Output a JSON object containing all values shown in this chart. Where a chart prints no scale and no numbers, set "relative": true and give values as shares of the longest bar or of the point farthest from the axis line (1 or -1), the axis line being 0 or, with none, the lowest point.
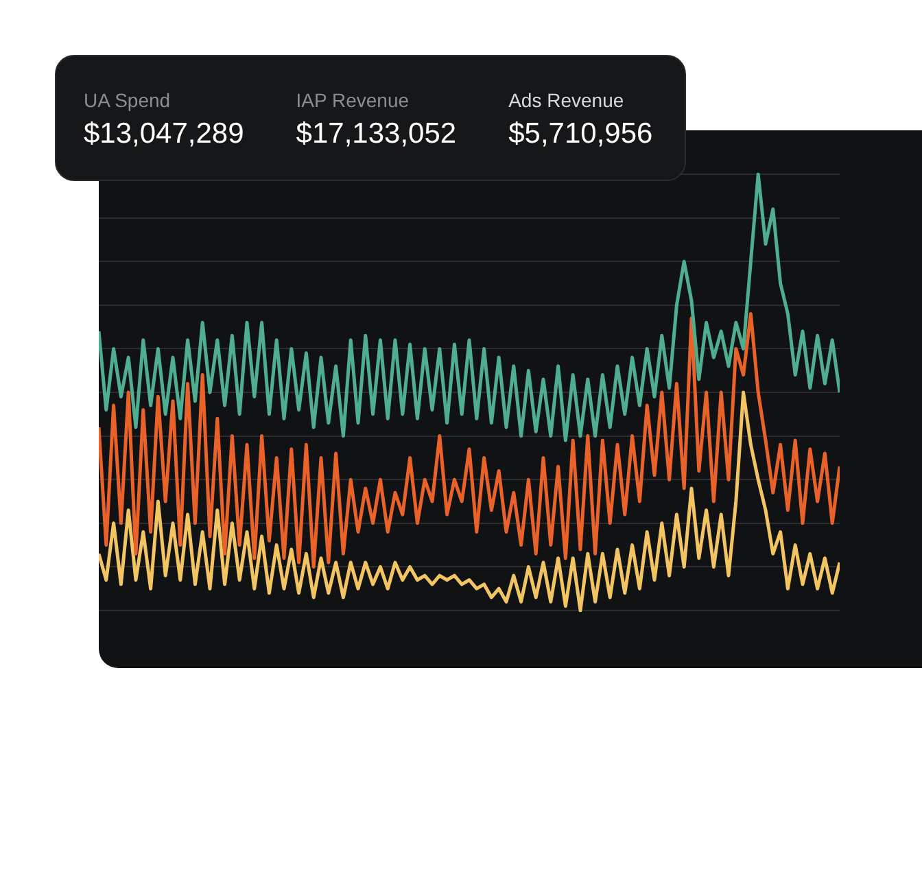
{
  "chart_data": [
    {
      "type": "line",
      "relative": true,
      "grid": "y",
      "marker": "none",
      "line_style": "solid",
      "categories": [
        null,
        null,
        null,
        null,
        null,
        null,
        null,
        null,
        null,
        null,
        null,
        null,
        null,
        null,
        null,
        null,
        null,
        null,
        null,
        null,
        null,
        null,
        null,
        null,
        null,
        null,
        null,
        null,
        null,
        null,
        null,
        null,
        null,
        null,
        null,
        null,
        null,
        null,
        null,
        null,
        null,
        null,
        null,
        null,
        null,
        null,
        null,
        null,
        null,
        null,
        null,
        null,
        null,
        null,
        null,
        null,
        null,
        null,
        null,
        null,
        null,
        null,
        null,
        null,
        null,
        null,
        null,
        null,
        null,
        null,
        null,
        null,
        null,
        null,
        null,
        null,
        null,
        null,
        null,
        null,
        null,
        null,
        null,
        null,
        null,
        null,
        null,
        null,
        null,
        null,
        null,
        null,
        null,
        null,
        null,
        null,
        null,
        null,
        null,
        null,
        null
      ],
      "series": [
        {
          "color": "#4fae8f",
          "values": [
            0.64,
            0.46,
            0.6,
            0.49,
            0.58,
            0.42,
            0.62,
            0.47,
            0.6,
            0.45,
            0.58,
            0.44,
            0.62,
            0.48,
            0.66,
            0.5,
            0.62,
            0.47,
            0.63,
            0.45,
            0.66,
            0.49,
            0.66,
            0.45,
            0.62,
            0.44,
            0.6,
            0.46,
            0.59,
            0.42,
            0.58,
            0.43,
            0.56,
            0.4,
            0.62,
            0.43,
            0.63,
            0.45,
            0.62,
            0.44,
            0.62,
            0.45,
            0.61,
            0.44,
            0.6,
            0.46,
            0.6,
            0.43,
            0.61,
            0.45,
            0.62,
            0.44,
            0.6,
            0.43,
            0.58,
            0.42,
            0.56,
            0.4,
            0.55,
            0.41,
            0.53,
            0.4,
            0.56,
            0.39,
            0.54,
            0.4,
            0.53,
            0.4,
            0.54,
            0.42,
            0.56,
            0.45,
            0.58,
            0.47,
            0.6,
            0.49,
            0.63,
            0.51,
            0.7,
            0.8,
            0.71,
            0.53,
            0.66,
            0.58,
            0.64,
            0.56,
            0.66,
            0.6,
            0.8,
            1.0,
            0.84,
            0.92,
            0.75,
            0.68,
            0.54,
            0.64,
            0.51,
            0.63,
            0.52,
            0.62,
            0.5
          ]
        },
        {
          "color": "#e8622a",
          "values": [
            0.42,
            0.15,
            0.47,
            0.2,
            0.5,
            0.13,
            0.46,
            0.18,
            0.49,
            0.25,
            0.48,
            0.15,
            0.52,
            0.2,
            0.54,
            0.17,
            0.44,
            0.13,
            0.4,
            0.15,
            0.38,
            0.12,
            0.4,
            0.16,
            0.35,
            0.12,
            0.37,
            0.11,
            0.38,
            0.1,
            0.35,
            0.11,
            0.36,
            0.13,
            0.3,
            0.18,
            0.28,
            0.2,
            0.3,
            0.18,
            0.27,
            0.22,
            0.35,
            0.2,
            0.3,
            0.25,
            0.4,
            0.22,
            0.3,
            0.25,
            0.37,
            0.18,
            0.35,
            0.23,
            0.32,
            0.18,
            0.27,
            0.15,
            0.3,
            0.13,
            0.35,
            0.15,
            0.33,
            0.12,
            0.39,
            0.14,
            0.4,
            0.13,
            0.39,
            0.2,
            0.38,
            0.22,
            0.4,
            0.25,
            0.47,
            0.31,
            0.5,
            0.3,
            0.52,
            0.28,
            0.67,
            0.32,
            0.5,
            0.25,
            0.5,
            0.3,
            0.6,
            0.54,
            0.68,
            0.5,
            0.39,
            0.27,
            0.38,
            0.23,
            0.39,
            0.2,
            0.37,
            0.25,
            0.36,
            0.2,
            0.33
          ]
        },
        {
          "color": "#f2c462",
          "values": [
            0.13,
            0.07,
            0.2,
            0.06,
            0.23,
            0.07,
            0.18,
            0.05,
            0.25,
            0.08,
            0.2,
            0.07,
            0.22,
            0.06,
            0.18,
            0.05,
            0.23,
            0.06,
            0.2,
            0.07,
            0.18,
            0.05,
            0.17,
            0.04,
            0.15,
            0.05,
            0.14,
            0.04,
            0.13,
            0.03,
            0.12,
            0.04,
            0.11,
            0.03,
            0.11,
            0.05,
            0.11,
            0.06,
            0.1,
            0.05,
            0.11,
            0.07,
            0.1,
            0.07,
            0.08,
            0.06,
            0.08,
            0.07,
            0.08,
            0.06,
            0.07,
            0.05,
            0.06,
            0.03,
            0.05,
            0.02,
            0.08,
            0.02,
            0.1,
            0.03,
            0.11,
            0.02,
            0.12,
            0.01,
            0.12,
            0.0,
            0.13,
            0.02,
            0.13,
            0.03,
            0.14,
            0.04,
            0.15,
            0.05,
            0.18,
            0.07,
            0.2,
            0.08,
            0.22,
            0.1,
            0.28,
            0.12,
            0.23,
            0.1,
            0.22,
            0.08,
            0.25,
            0.5,
            0.38,
            0.3,
            0.23,
            0.13,
            0.18,
            0.05,
            0.15,
            0.06,
            0.13,
            0.05,
            0.12,
            0.04,
            0.11
          ]
        }
      ]
    },
    {
      "type": "other",
      "annotations": [
        "UA Spend",
        "$13,047,289",
        "IAP Revenue",
        "$17,133,052",
        "Ads Revenue",
        "$5,710,956"
      ]
    }
  ]
}
